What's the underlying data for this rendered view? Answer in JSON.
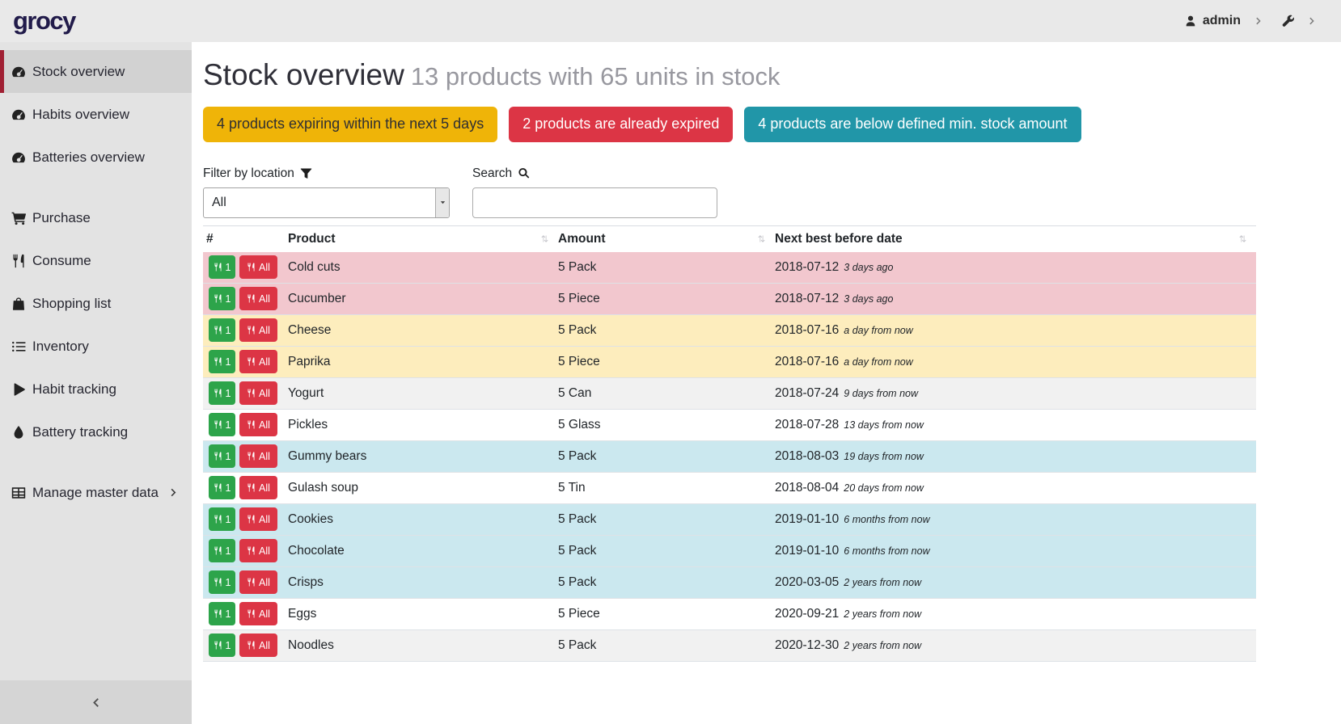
{
  "colors": {
    "logo_text": "#211b4a",
    "topbar_bg": "#e9e9e9",
    "sidebar_bg": "#e3e3e3",
    "sidebar_active_bg": "#d2d2d2",
    "sidebar_active_border": "#a02033",
    "badge_warning_bg": "#efb408",
    "badge_danger_bg": "#dc3545",
    "badge_info_bg": "#2196a8",
    "consume_one_button_bg": "#2da44a",
    "consume_all_button_bg": "#dc3545",
    "row_expired_bg": "#f2c7ce",
    "row_expiring_bg": "#fdedbd",
    "row_below_min_bg": "#cbe8ef",
    "row_stripe_bg": "#f1f1f1"
  },
  "header": {
    "logo_text": "grocy",
    "user_label": "admin",
    "user_icon": "user-icon",
    "settings_icon": "wrench-icon",
    "chevron_icon": "chevron-right-icon"
  },
  "sidebar": {
    "items": [
      {
        "label": "Stock overview",
        "icon": "tachometer-icon",
        "active": true,
        "section": 1
      },
      {
        "label": "Habits overview",
        "icon": "tachometer-icon",
        "section": 1
      },
      {
        "label": "Batteries overview",
        "icon": "tachometer-icon",
        "section": 1
      },
      {
        "label": "Purchase",
        "icon": "cart-icon",
        "section": 2
      },
      {
        "label": "Consume",
        "icon": "utensils-icon",
        "section": 2
      },
      {
        "label": "Shopping list",
        "icon": "bag-icon",
        "section": 2
      },
      {
        "label": "Inventory",
        "icon": "list-icon",
        "section": 2
      },
      {
        "label": "Habit tracking",
        "icon": "play-icon",
        "section": 2
      },
      {
        "label": "Battery tracking",
        "icon": "droplet-icon",
        "section": 2
      },
      {
        "label": "Manage master data",
        "icon": "table-icon",
        "section": 3,
        "has_submenu": true
      }
    ],
    "collapse_icon": "chevron-left-icon"
  },
  "main": {
    "title": "Stock overview",
    "subtitle": "13 products with 65 units in stock",
    "badges": [
      {
        "label": "4 products expiring within the next 5 days",
        "type": "warning"
      },
      {
        "label": "2 products are already expired",
        "type": "danger"
      },
      {
        "label": "4 products are below defined min. stock amount",
        "type": "info"
      }
    ],
    "filter": {
      "label": "Filter by location",
      "icon": "filter-icon",
      "value": "All"
    },
    "search": {
      "label": "Search",
      "icon": "search-icon",
      "value": ""
    },
    "table": {
      "columns": [
        {
          "label": "#",
          "sortable": false
        },
        {
          "label": "Product",
          "sortable": true
        },
        {
          "label": "Amount",
          "sortable": true
        },
        {
          "label": "Next best before date",
          "sortable": true
        }
      ],
      "consume_icon": "utensils-icon",
      "consume_one_label": "1",
      "consume_all_label": "All",
      "rows": [
        {
          "product": "Cold cuts",
          "amount": "5 Pack",
          "best_before": "2018-07-12",
          "due_note": "3 days ago",
          "state": "expired"
        },
        {
          "product": "Cucumber",
          "amount": "5 Piece",
          "best_before": "2018-07-12",
          "due_note": "3 days ago",
          "state": "expired"
        },
        {
          "product": "Cheese",
          "amount": "5 Pack",
          "best_before": "2018-07-16",
          "due_note": "a day from now",
          "state": "expiring"
        },
        {
          "product": "Paprika",
          "amount": "5 Piece",
          "best_before": "2018-07-16",
          "due_note": "a day from now",
          "state": "expiring"
        },
        {
          "product": "Yogurt",
          "amount": "5 Can",
          "best_before": "2018-07-24",
          "due_note": "9 days from now",
          "state": "stripe"
        },
        {
          "product": "Pickles",
          "amount": "5 Glass",
          "best_before": "2018-07-28",
          "due_note": "13 days from now",
          "state": "none"
        },
        {
          "product": "Gummy bears",
          "amount": "5 Pack",
          "best_before": "2018-08-03",
          "due_note": "19 days from now",
          "state": "belowmin"
        },
        {
          "product": "Gulash soup",
          "amount": "5 Tin",
          "best_before": "2018-08-04",
          "due_note": "20 days from now",
          "state": "none"
        },
        {
          "product": "Cookies",
          "amount": "5 Pack",
          "best_before": "2019-01-10",
          "due_note": "6 months from now",
          "state": "belowmin"
        },
        {
          "product": "Chocolate",
          "amount": "5 Pack",
          "best_before": "2019-01-10",
          "due_note": "6 months from now",
          "state": "belowmin"
        },
        {
          "product": "Crisps",
          "amount": "5 Pack",
          "best_before": "2020-03-05",
          "due_note": "2 years from now",
          "state": "belowmin"
        },
        {
          "product": "Eggs",
          "amount": "5 Piece",
          "best_before": "2020-09-21",
          "due_note": "2 years from now",
          "state": "none"
        },
        {
          "product": "Noodles",
          "amount": "5 Pack",
          "best_before": "2020-12-30",
          "due_note": "2 years from now",
          "state": "stripe"
        }
      ]
    }
  }
}
